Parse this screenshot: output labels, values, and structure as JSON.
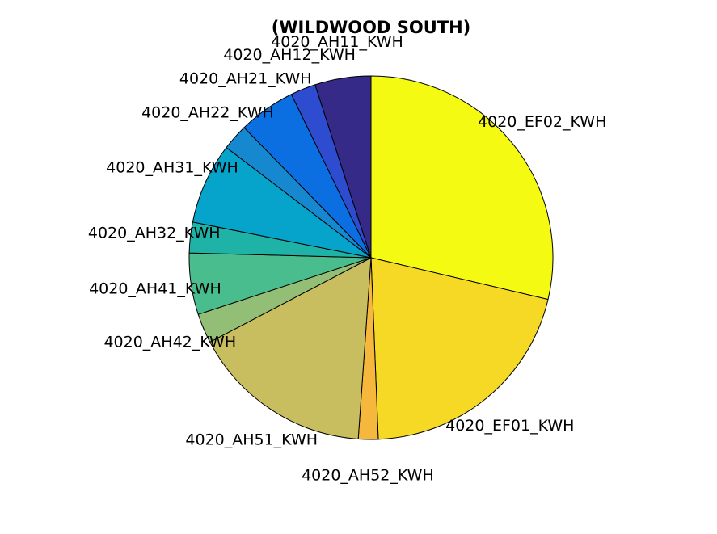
{
  "chart_data": {
    "type": "pie",
    "title": "(WILDWOOD SOUTH)",
    "slices": [
      {
        "label": "4020_EF02_KWH",
        "value": 29.4,
        "color": "#F5FA12"
      },
      {
        "label": "4020_EF01_KWH",
        "value": 21.2,
        "color": "#F5D925"
      },
      {
        "label": "4020_AH52_KWH",
        "value": 1.8,
        "color": "#F5B83D"
      },
      {
        "label": "4020_AH51_KWH",
        "value": 16.6,
        "color": "#C8BE60"
      },
      {
        "label": "4020_AH42_KWH",
        "value": 2.7,
        "color": "#92BE76"
      },
      {
        "label": "4020_AH41_KWH",
        "value": 5.6,
        "color": "#4ABD8F"
      },
      {
        "label": "4020_AH32_KWH",
        "value": 2.8,
        "color": "#1FB3A8"
      },
      {
        "label": "4020_AH31_KWH",
        "value": 7.4,
        "color": "#06A4CA"
      },
      {
        "label": "4020_AH22_KWH",
        "value": 2.4,
        "color": "#1688D0"
      },
      {
        "label": "4020_AH21_KWH",
        "value": 5.2,
        "color": "#0C6FE1"
      },
      {
        "label": "4020_AH12_KWH",
        "value": 2.3,
        "color": "#2E4CD0"
      },
      {
        "label": "4020_AH11_KWH",
        "value": 5.1,
        "color": "#352A87"
      }
    ]
  }
}
